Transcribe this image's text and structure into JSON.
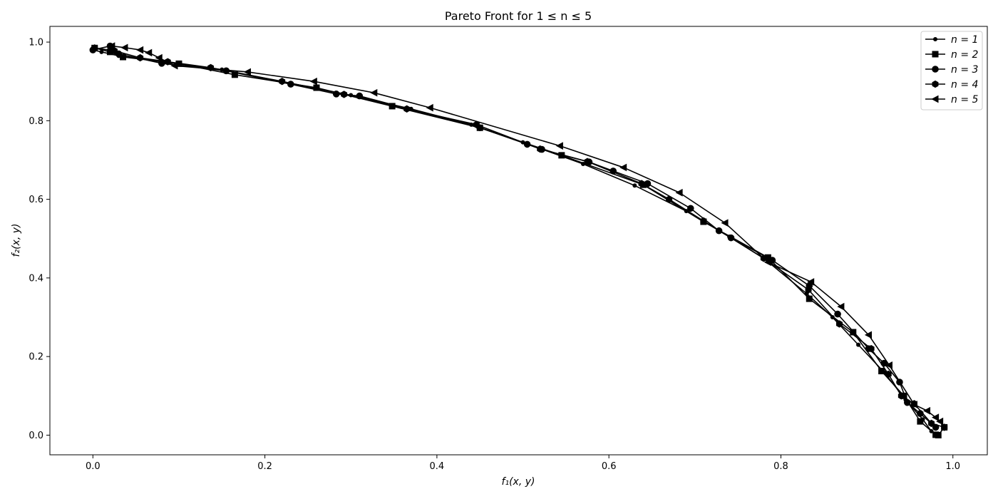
{
  "chart_data": {
    "type": "line",
    "title": "Pareto Front for 1 ≤ n ≤ 5",
    "xlabel": "f₁(x, y)",
    "ylabel": "f₂(x, y)",
    "xlim": [
      -0.05,
      1.04
    ],
    "ylim": [
      -0.05,
      1.04
    ],
    "xticks": [
      0.0,
      0.2,
      0.4,
      0.6,
      0.8,
      1.0
    ],
    "xtick_labels": [
      "0.0",
      "0.2",
      "0.4",
      "0.6",
      "0.8",
      "1.0"
    ],
    "yticks": [
      0.0,
      0.2,
      0.4,
      0.6,
      0.8,
      1.0
    ],
    "ytick_labels": [
      "0.0",
      "0.2",
      "0.4",
      "0.6",
      "0.8",
      "1.0"
    ],
    "grid": false,
    "legend_position": "top-right",
    "color": "#000000",
    "series": [
      {
        "name": "n = 1",
        "marker": "point",
        "points": [
          [
            0.0,
            0.98
          ],
          [
            0.01,
            0.975
          ],
          [
            0.03,
            0.965
          ],
          [
            0.08,
            0.95
          ],
          [
            0.15,
            0.93
          ],
          [
            0.23,
            0.895
          ],
          [
            0.3,
            0.865
          ],
          [
            0.37,
            0.83
          ],
          [
            0.44,
            0.79
          ],
          [
            0.5,
            0.745
          ],
          [
            0.57,
            0.69
          ],
          [
            0.63,
            0.635
          ],
          [
            0.69,
            0.57
          ],
          [
            0.74,
            0.505
          ],
          [
            0.78,
            0.45
          ],
          [
            0.83,
            0.36
          ],
          [
            0.86,
            0.3
          ],
          [
            0.89,
            0.23
          ],
          [
            0.92,
            0.16
          ],
          [
            0.945,
            0.09
          ],
          [
            0.965,
            0.04
          ],
          [
            0.975,
            0.01
          ]
        ]
      },
      {
        "name": "n = 2",
        "marker": "square",
        "points": [
          [
            0.002,
            0.985
          ],
          [
            0.02,
            0.975
          ],
          [
            0.035,
            0.962
          ],
          [
            0.1,
            0.945
          ],
          [
            0.165,
            0.917
          ],
          [
            0.26,
            0.884
          ],
          [
            0.348,
            0.837
          ],
          [
            0.45,
            0.782
          ],
          [
            0.545,
            0.712
          ],
          [
            0.64,
            0.637
          ],
          [
            0.71,
            0.543
          ],
          [
            0.785,
            0.452
          ],
          [
            0.833,
            0.347
          ],
          [
            0.884,
            0.262
          ],
          [
            0.917,
            0.163
          ],
          [
            0.943,
            0.1
          ],
          [
            0.962,
            0.035
          ],
          [
            0.98,
            0.001
          ],
          [
            0.983,
            0.0
          ],
          [
            0.99,
            0.02
          ]
        ]
      },
      {
        "name": "n = 3",
        "marker": "circle",
        "points": [
          [
            0.0,
            0.98
          ],
          [
            0.02,
            0.99
          ],
          [
            0.03,
            0.97
          ],
          [
            0.08,
            0.946
          ],
          [
            0.155,
            0.927
          ],
          [
            0.23,
            0.893
          ],
          [
            0.283,
            0.868
          ],
          [
            0.31,
            0.863
          ],
          [
            0.45,
            0.782
          ],
          [
            0.505,
            0.74
          ],
          [
            0.522,
            0.727
          ],
          [
            0.577,
            0.695
          ],
          [
            0.605,
            0.672
          ],
          [
            0.645,
            0.64
          ],
          [
            0.695,
            0.577
          ],
          [
            0.728,
            0.52
          ],
          [
            0.742,
            0.502
          ],
          [
            0.79,
            0.445
          ],
          [
            0.833,
            0.38
          ],
          [
            0.866,
            0.308
          ],
          [
            0.902,
            0.22
          ],
          [
            0.92,
            0.183
          ],
          [
            0.938,
            0.135
          ],
          [
            0.947,
            0.083
          ],
          [
            0.962,
            0.055
          ],
          [
            0.98,
            0.02
          ]
        ]
      },
      {
        "name": "n = 4",
        "marker": "hexagon",
        "points": [
          [
            0.002,
            0.985
          ],
          [
            0.025,
            0.978
          ],
          [
            0.055,
            0.96
          ],
          [
            0.087,
            0.95
          ],
          [
            0.137,
            0.935
          ],
          [
            0.22,
            0.9
          ],
          [
            0.292,
            0.867
          ],
          [
            0.365,
            0.83
          ],
          [
            0.446,
            0.79
          ],
          [
            0.52,
            0.728
          ],
          [
            0.575,
            0.696
          ],
          [
            0.638,
            0.64
          ],
          [
            0.67,
            0.6
          ],
          [
            0.71,
            0.545
          ],
          [
            0.78,
            0.45
          ],
          [
            0.832,
            0.37
          ],
          [
            0.868,
            0.283
          ],
          [
            0.905,
            0.22
          ],
          [
            0.925,
            0.155
          ],
          [
            0.94,
            0.1
          ],
          [
            0.955,
            0.08
          ],
          [
            0.975,
            0.03
          ],
          [
            0.99,
            0.02
          ]
        ]
      },
      {
        "name": "n = 5",
        "marker": "triangle-left",
        "points": [
          [
            0.022,
            0.99
          ],
          [
            0.037,
            0.986
          ],
          [
            0.055,
            0.98
          ],
          [
            0.065,
            0.973
          ],
          [
            0.077,
            0.96
          ],
          [
            0.095,
            0.94
          ],
          [
            0.18,
            0.924
          ],
          [
            0.257,
            0.9
          ],
          [
            0.327,
            0.871
          ],
          [
            0.392,
            0.833
          ],
          [
            0.543,
            0.736
          ],
          [
            0.617,
            0.681
          ],
          [
            0.682,
            0.617
          ],
          [
            0.735,
            0.54
          ],
          [
            0.785,
            0.44
          ],
          [
            0.835,
            0.39
          ],
          [
            0.87,
            0.327
          ],
          [
            0.902,
            0.255
          ],
          [
            0.926,
            0.178
          ],
          [
            0.955,
            0.078
          ],
          [
            0.97,
            0.062
          ],
          [
            0.98,
            0.045
          ],
          [
            0.985,
            0.035
          ]
        ]
      }
    ]
  }
}
